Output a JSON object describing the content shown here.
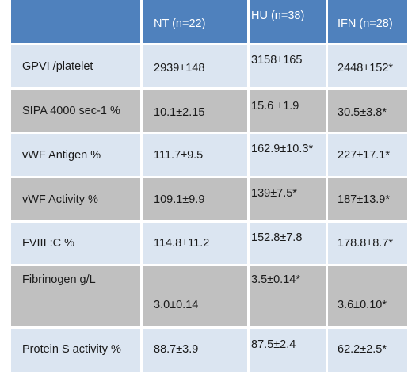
{
  "table": {
    "columns": [
      "",
      "NT (n=22)",
      "HU (n=38)",
      "IFN (n=28)"
    ],
    "rows": [
      {
        "label": "GPVI /platelet",
        "nt": "2939±148",
        "hu": "3158±165",
        "ifn": "2448±152*"
      },
      {
        "label": "SIPA 4000 sec-1 %",
        "nt": "10.1±2.15",
        "hu": "15.6 ±1.9",
        "ifn": "30.5±3.8*"
      },
      {
        "label": "vWF Antigen %",
        "nt": "111.7±9.5",
        "hu": "162.9±10.3*",
        "ifn": "227±17.1*"
      },
      {
        "label": "vWF Activity %",
        "nt": "109.1±9.9",
        "hu": "139±7.5*",
        "ifn": "187±13.9*"
      },
      {
        "label": "FVIII :C %",
        "nt": "114.8±11.2",
        "hu": "152.8±7.8",
        "ifn": "178.8±8.7*"
      },
      {
        "label": "Fibrinogen g/L",
        "nt": "3.0±0.14",
        "hu": "3.5±0.14*",
        "ifn": "3.6±0.10*"
      },
      {
        "label": "Protein S activity %",
        "nt": "88.7±3.9",
        "hu": "87.5±2.4",
        "ifn": "62.2±2.5*"
      }
    ]
  },
  "colors": {
    "header": "#4f81bd",
    "light_row": "#dbe5f1",
    "gray_row": "#c0c0c0"
  }
}
